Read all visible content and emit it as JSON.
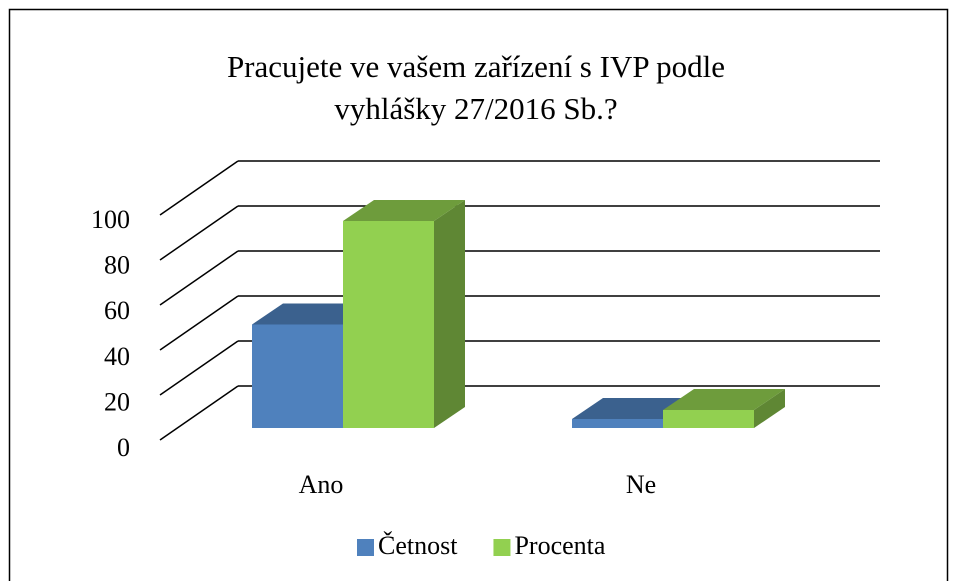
{
  "chart_data": {
    "type": "bar3d",
    "title": [
      "Pracujete ve vašem zařízení s IVP podle",
      "vyhlášky 27/2016 Sb.?"
    ],
    "categories": [
      "Ano",
      "Ne"
    ],
    "series": [
      {
        "name": "Četnost",
        "color": "#4f81bd",
        "values": [
          46,
          4
        ]
      },
      {
        "name": "Procenta",
        "color": "#92d050",
        "values": [
          92,
          8
        ]
      }
    ],
    "ylim": [
      0,
      100
    ],
    "yticks": [
      0,
      20,
      40,
      60,
      80,
      100
    ],
    "grid": true,
    "legend": "bottom"
  }
}
